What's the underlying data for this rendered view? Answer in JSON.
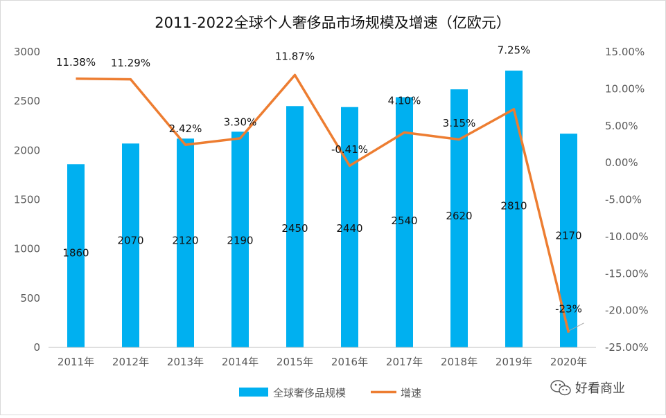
{
  "chart_data": {
    "type": "bar",
    "title": "2011-2022全球个人奢侈品市场规模及增速（亿欧元）",
    "categories": [
      "2011年",
      "2012年",
      "2013年",
      "2014年",
      "2015年",
      "2016年",
      "2017年",
      "2018年",
      "2019年",
      "2020年"
    ],
    "series": [
      {
        "name": "全球奢侈品规模",
        "kind": "bar",
        "axis": "left",
        "color": "#00B0F0",
        "values": [
          1860,
          2070,
          2120,
          2190,
          2450,
          2440,
          2540,
          2620,
          2810,
          2170
        ],
        "labels": [
          "1860",
          "2070",
          "2120",
          "2190",
          "2450",
          "2440",
          "2540",
          "2620",
          "2810",
          "2170"
        ]
      },
      {
        "name": "增速",
        "kind": "line",
        "axis": "right",
        "color": "#ED7D31",
        "values": [
          11.38,
          11.29,
          2.42,
          3.3,
          11.87,
          -0.41,
          4.1,
          3.15,
          7.25,
          -23
        ],
        "labels": [
          "11.38%",
          "11.29%",
          "2.42%",
          "3.30%",
          "11.87%",
          "-0.41%",
          "4.10%",
          "3.15%",
          "7.25%",
          "-23%"
        ]
      }
    ],
    "y_left": {
      "ylim": [
        0,
        3000
      ],
      "ticks": [
        0,
        500,
        1000,
        1500,
        2000,
        2500,
        3000
      ],
      "tick_labels": [
        "0",
        "500",
        "1000",
        "1500",
        "2000",
        "2500",
        "3000"
      ]
    },
    "y_right": {
      "ylim": [
        -25,
        15
      ],
      "ticks": [
        -25,
        -20,
        -15,
        -10,
        -5,
        0,
        5,
        10,
        15
      ],
      "tick_labels": [
        "-25.00%",
        "-20.00%",
        "-15.00%",
        "-10.00%",
        "-5.00%",
        "0.00%",
        "5.00%",
        "10.00%",
        "15.00%"
      ]
    },
    "grid": false,
    "legend_position": "bottom-center",
    "legend": [
      {
        "label": "全球奢侈品规模",
        "kind": "bar",
        "color": "#00B0F0"
      },
      {
        "label": "增速",
        "kind": "line",
        "color": "#ED7D31"
      }
    ],
    "xlabel": "",
    "ylabel": ""
  },
  "watermark": {
    "text": "好看商业",
    "icon": "wechat-icon"
  }
}
